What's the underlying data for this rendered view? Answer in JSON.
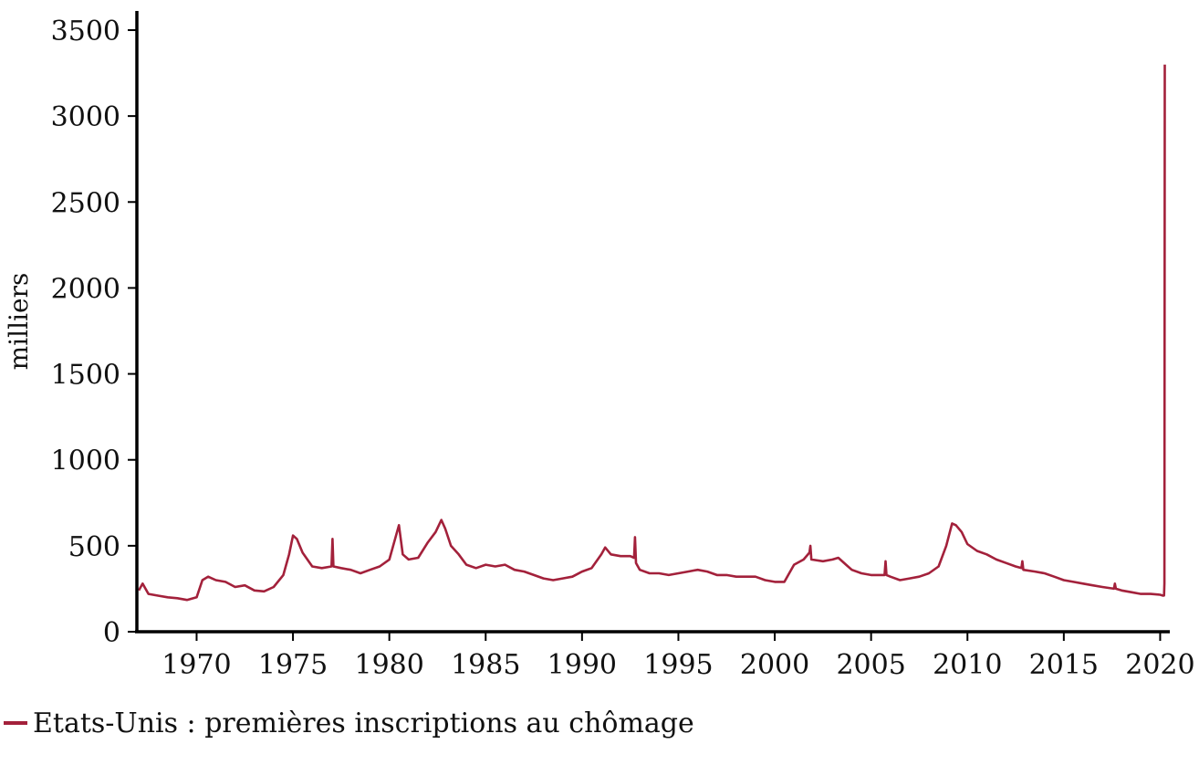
{
  "chart_data": {
    "type": "line",
    "ylabel": "milliers",
    "ylim": [
      0,
      3500
    ],
    "xlim": [
      1966.9,
      2020.5
    ],
    "y_ticks": [
      0,
      500,
      1000,
      1500,
      2000,
      2500,
      3000,
      3500
    ],
    "x_ticks": [
      1970,
      1975,
      1980,
      1985,
      1990,
      1995,
      2000,
      2005,
      2010,
      2015,
      2020
    ],
    "grid": false,
    "legend_position": "bottom-left",
    "series": [
      {
        "name": "Etats-Unis : premières inscriptions au chômage",
        "color": "#a3213b",
        "x": [
          1967.0,
          1967.2,
          1967.5,
          1968.0,
          1968.5,
          1969.0,
          1969.5,
          1970.0,
          1970.3,
          1970.6,
          1971.0,
          1971.5,
          1972.0,
          1972.5,
          1973.0,
          1973.5,
          1974.0,
          1974.5,
          1974.8,
          1975.0,
          1975.2,
          1975.5,
          1976.0,
          1976.5,
          1977.0,
          1977.05,
          1977.1,
          1977.5,
          1978.0,
          1978.5,
          1979.0,
          1979.5,
          1980.0,
          1980.3,
          1980.5,
          1980.7,
          1981.0,
          1981.5,
          1982.0,
          1982.4,
          1982.7,
          1982.9,
          1983.2,
          1983.6,
          1984.0,
          1984.5,
          1985.0,
          1985.5,
          1986.0,
          1986.5,
          1987.0,
          1987.5,
          1988.0,
          1988.5,
          1989.0,
          1989.5,
          1990.0,
          1990.5,
          1991.0,
          1991.2,
          1991.5,
          1992.0,
          1992.5,
          1992.7,
          1992.75,
          1992.8,
          1993.0,
          1993.5,
          1994.0,
          1994.5,
          1995.0,
          1995.5,
          1996.0,
          1996.5,
          1997.0,
          1997.5,
          1998.0,
          1998.5,
          1999.0,
          1999.5,
          2000.0,
          2000.5,
          2001.0,
          2001.5,
          2001.8,
          2001.85,
          2001.9,
          2002.5,
          2003.0,
          2003.3,
          2003.7,
          2004.0,
          2004.5,
          2005.0,
          2005.5,
          2005.7,
          2005.75,
          2005.8,
          2006.0,
          2006.5,
          2007.0,
          2007.5,
          2008.0,
          2008.5,
          2008.9,
          2009.2,
          2009.4,
          2009.7,
          2010.0,
          2010.5,
          2011.0,
          2011.5,
          2012.0,
          2012.5,
          2012.8,
          2012.85,
          2012.9,
          2013.5,
          2014.0,
          2014.5,
          2015.0,
          2015.5,
          2016.0,
          2016.5,
          2017.0,
          2017.6,
          2017.65,
          2017.7,
          2018.0,
          2018.5,
          2019.0,
          2019.5,
          2020.0,
          2020.15,
          2020.2,
          2020.22,
          2020.24
        ],
        "values": [
          240,
          280,
          220,
          210,
          200,
          195,
          185,
          200,
          300,
          320,
          300,
          290,
          260,
          270,
          240,
          235,
          260,
          330,
          450,
          560,
          540,
          460,
          380,
          370,
          380,
          540,
          380,
          370,
          360,
          340,
          360,
          380,
          420,
          540,
          620,
          450,
          420,
          430,
          520,
          580,
          650,
          600,
          500,
          450,
          390,
          370,
          390,
          380,
          390,
          360,
          350,
          330,
          310,
          300,
          310,
          320,
          350,
          370,
          450,
          490,
          450,
          440,
          440,
          430,
          550,
          400,
          360,
          340,
          340,
          330,
          340,
          350,
          360,
          350,
          330,
          330,
          320,
          320,
          320,
          300,
          290,
          290,
          390,
          420,
          460,
          500,
          420,
          410,
          420,
          430,
          390,
          360,
          340,
          330,
          330,
          330,
          410,
          330,
          320,
          300,
          310,
          320,
          340,
          380,
          500,
          630,
          620,
          580,
          510,
          470,
          450,
          420,
          400,
          380,
          370,
          410,
          360,
          350,
          340,
          320,
          300,
          290,
          280,
          270,
          260,
          250,
          280,
          250,
          240,
          230,
          220,
          220,
          215,
          210,
          211,
          281,
          3300
        ]
      }
    ]
  }
}
